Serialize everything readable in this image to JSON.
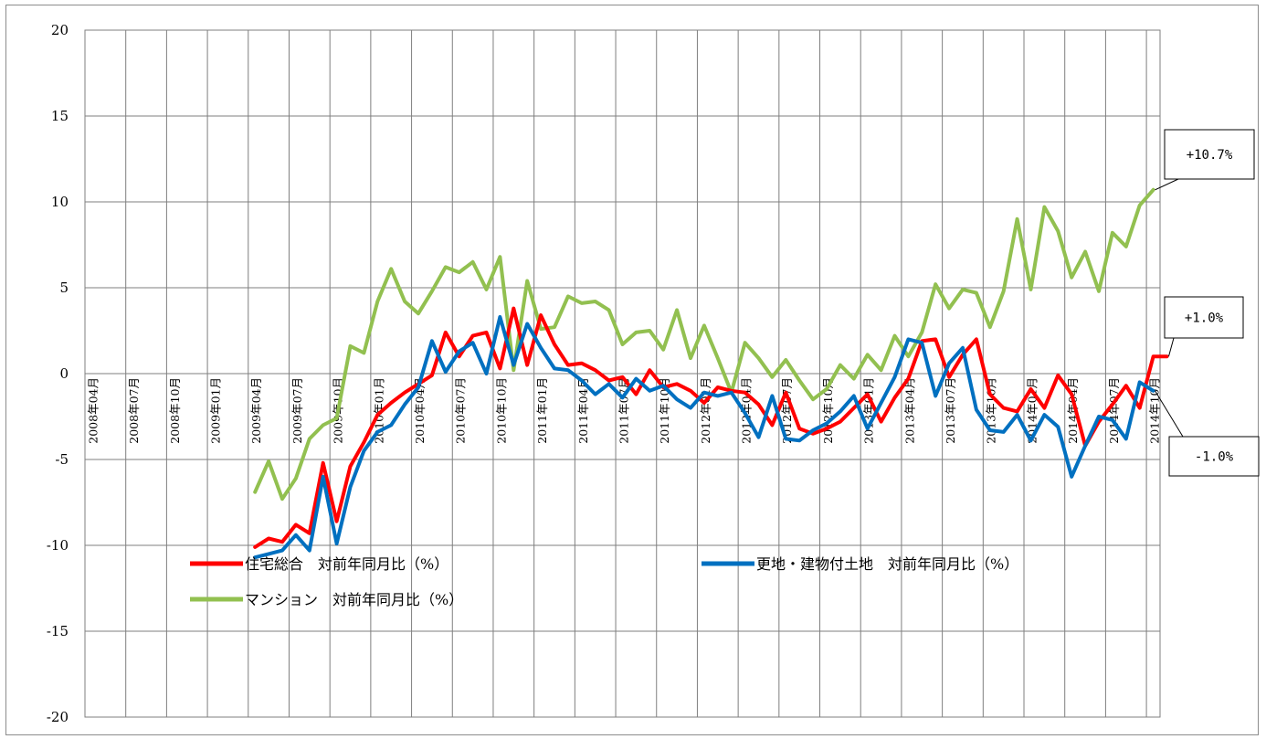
{
  "chart_data": {
    "type": "line",
    "title": "",
    "xlabel": "",
    "ylabel": "",
    "ylim": [
      -20,
      20
    ],
    "yticks": [
      20,
      15,
      10,
      5,
      0,
      -5,
      -10,
      -15,
      -20
    ],
    "grid": true,
    "legend_position": "bottom-inside",
    "x_start": "2008-04",
    "x_tick_labels": [
      "2008年04月",
      "2008年07月",
      "2008年10月",
      "2009年01月",
      "2009年04月",
      "2009年07月",
      "2009年10月",
      "2010年01月",
      "2010年04月",
      "2010年07月",
      "2010年10月",
      "2011年01月",
      "2011年04月",
      "2011年07月",
      "2011年10月",
      "2012年01月",
      "2012年04月",
      "2012年07月",
      "2012年10月",
      "2013年01月",
      "2013年04月",
      "2013年07月",
      "2013年10月",
      "2014年01月",
      "2014年04月",
      "2014年07月",
      "2014年10月"
    ],
    "series": [
      {
        "name": "住宅総合　対前年同月比（%）",
        "color": "#ff0000",
        "start": "2009-04",
        "values": [
          -10.1,
          -9.6,
          -9.8,
          -8.8,
          -9.3,
          -5.2,
          -8.6,
          -5.4,
          -4.0,
          -2.4,
          -1.7,
          -1.1,
          -0.6,
          -0.1,
          2.4,
          1.0,
          2.2,
          2.4,
          0.3,
          3.8,
          0.5,
          3.4,
          1.7,
          0.5,
          0.6,
          0.2,
          -0.4,
          -0.2,
          -1.2,
          0.2,
          -0.8,
          -0.6,
          -1.0,
          -1.7,
          -0.8,
          -1.0,
          -1.1,
          -1.8,
          -3.0,
          -1.1,
          -3.2,
          -3.5,
          -3.2,
          -2.8,
          -2.0,
          -1.2,
          -2.8,
          -1.4,
          -0.3,
          1.9,
          2.0,
          -0.2,
          1.1,
          2.0,
          -1.2,
          -2.0,
          -2.2,
          -0.9,
          -2.0,
          -0.1,
          -1.2,
          -4.2,
          -2.8,
          -1.8,
          -0.7,
          -2.0,
          1.0,
          1.0
        ]
      },
      {
        "name": "更地・建物付土地　対前年同月比（%）",
        "color": "#0070c0",
        "start": "2009-04",
        "values": [
          -10.7,
          -10.5,
          -10.3,
          -9.4,
          -10.3,
          -6.0,
          -9.9,
          -6.6,
          -4.5,
          -3.4,
          -3.0,
          -1.8,
          -0.8,
          1.9,
          0.1,
          1.3,
          1.8,
          0.0,
          3.3,
          0.5,
          2.9,
          1.5,
          0.3,
          0.2,
          -0.4,
          -1.2,
          -0.6,
          -1.4,
          -0.3,
          -1.0,
          -0.7,
          -1.5,
          -2.0,
          -1.1,
          -1.3,
          -1.1,
          -2.3,
          -3.7,
          -1.3,
          -3.8,
          -3.9,
          -3.3,
          -2.9,
          -2.2,
          -1.3,
          -3.2,
          -1.7,
          -0.2,
          2.0,
          1.8,
          -1.3,
          0.6,
          1.5,
          -2.1,
          -3.3,
          -3.4,
          -2.4,
          -3.9,
          -2.4,
          -3.1,
          -6.0,
          -4.2,
          -2.5,
          -2.7,
          -3.8,
          -0.5,
          -1.0
        ]
      },
      {
        "name": "マンション　対前年同月比（%）",
        "color": "#92c050",
        "start": "2009-04",
        "values": [
          -6.9,
          -5.1,
          -7.3,
          -6.1,
          -3.8,
          -3.0,
          -2.6,
          1.6,
          1.2,
          4.2,
          6.1,
          4.2,
          3.5,
          4.8,
          6.2,
          5.9,
          6.5,
          4.9,
          6.8,
          0.2,
          5.4,
          2.6,
          2.7,
          4.5,
          4.1,
          4.2,
          3.7,
          1.7,
          2.4,
          2.5,
          1.4,
          3.7,
          0.9,
          2.8,
          0.9,
          -1.1,
          1.8,
          0.9,
          -0.2,
          0.8,
          -0.4,
          -1.5,
          -0.9,
          0.5,
          -0.3,
          1.1,
          0.2,
          2.2,
          1.0,
          2.4,
          5.2,
          3.8,
          4.9,
          4.7,
          2.7,
          4.8,
          9.0,
          4.9,
          9.7,
          8.3,
          5.6,
          7.1,
          4.8,
          8.2,
          7.4,
          9.8,
          10.7
        ]
      }
    ],
    "annotations": [
      {
        "text": "+10.7%",
        "series": 2
      },
      {
        "text": "+1.0%",
        "series": 0
      },
      {
        "text": "-1.0%",
        "series": 1
      }
    ]
  }
}
